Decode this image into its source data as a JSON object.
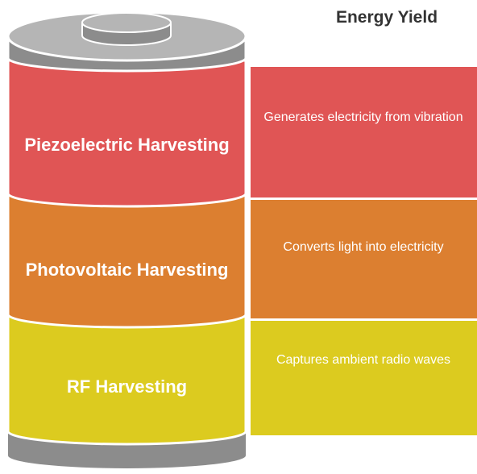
{
  "title": "Energy Yield",
  "layers": [
    {
      "label": "Piezoelectric Harvesting",
      "description": "Generates electricity from vibration"
    },
    {
      "label": "Photovoltaic Harvesting",
      "description": "Converts light into electricity"
    },
    {
      "label": "RF Harvesting",
      "description": "Captures ambient radio waves"
    }
  ]
}
